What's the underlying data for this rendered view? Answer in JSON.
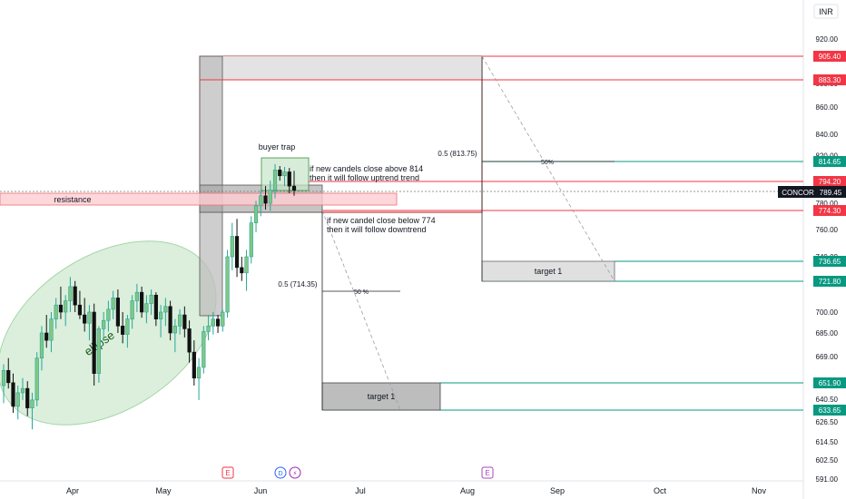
{
  "currency": "INR",
  "ticker": {
    "symbol": "CONCOR",
    "price": "789.45"
  },
  "colors": {
    "up": "#26a69a",
    "down": "#111111",
    "red_line": "#f23645",
    "green_line": "#089981",
    "ellipse_fill": "#c8e6c9",
    "box_gray": "#bdbdbd"
  },
  "axis_ticks": [
    "920.00",
    "880.00",
    "860.00",
    "840.00",
    "820.00",
    "780.00",
    "760.00",
    "740.00",
    "700.00",
    "685.00",
    "669.00",
    "640.50",
    "626.50",
    "614.50",
    "602.50",
    "591.00"
  ],
  "price_labels": [
    {
      "value": "905.40",
      "kind": "red"
    },
    {
      "value": "883.30",
      "kind": "red"
    },
    {
      "value": "814.65",
      "kind": "green"
    },
    {
      "value": "794.20",
      "kind": "red"
    },
    {
      "value": "774.30",
      "kind": "red"
    },
    {
      "value": "736.65",
      "kind": "green"
    },
    {
      "value": "721.80",
      "kind": "green"
    },
    {
      "value": "651.90",
      "kind": "green"
    },
    {
      "value": "633.65",
      "kind": "green"
    }
  ],
  "x_ticks": [
    "Apr",
    "May",
    "Jun",
    "Jul",
    "Aug",
    "Sep",
    "Oct",
    "Nov"
  ],
  "event_badges": [
    {
      "letter": "E",
      "kind": "earnings"
    },
    {
      "letter": "D",
      "kind": "dividend"
    },
    {
      "letter": "⚡",
      "kind": "split"
    },
    {
      "letter": "E",
      "kind": "earnings-upcoming"
    }
  ],
  "annotations": {
    "resistance": "resistance",
    "buyer_trap": "buyer trap",
    "uptrend_note_line1": "if new candels close above 814",
    "uptrend_note_line2": "then it will follow uptrend trend",
    "downtrend_note_line1": "if new candel close below 774",
    "downtrend_note_line2": "then it will follow downtrend",
    "fib_upper": "0.5 (813.75)",
    "fib_lower": "0.5 (714.35)",
    "pct_upper": "50%",
    "pct_lower": "50 %",
    "target_upper": "target 1",
    "target_lower": "target 1",
    "ellipse": "ellipse"
  },
  "chart_data": {
    "type": "candlestick",
    "ylim": [
      591,
      925
    ],
    "candles": [
      [
        650,
        664,
        638,
        660
      ],
      [
        660,
        668,
        648,
        652
      ],
      [
        652,
        658,
        632,
        636
      ],
      [
        636,
        650,
        628,
        645
      ],
      [
        645,
        655,
        640,
        648
      ],
      [
        648,
        653,
        630,
        635
      ],
      [
        635,
        645,
        622,
        640
      ],
      [
        640,
        672,
        636,
        668
      ],
      [
        668,
        690,
        660,
        685
      ],
      [
        685,
        698,
        675,
        680
      ],
      [
        680,
        700,
        672,
        695
      ],
      [
        695,
        710,
        688,
        705
      ],
      [
        705,
        718,
        695,
        700
      ],
      [
        700,
        712,
        690,
        708
      ],
      [
        708,
        725,
        700,
        718
      ],
      [
        718,
        722,
        700,
        705
      ],
      [
        705,
        715,
        695,
        698
      ],
      [
        698,
        710,
        686,
        692
      ],
      [
        692,
        705,
        680,
        700
      ],
      [
        700,
        706,
        650,
        658
      ],
      [
        658,
        690,
        652,
        688
      ],
      [
        688,
        700,
        680,
        694
      ],
      [
        694,
        708,
        686,
        702
      ],
      [
        702,
        715,
        695,
        710
      ],
      [
        710,
        716,
        685,
        690
      ],
      [
        690,
        700,
        678,
        684
      ],
      [
        684,
        698,
        675,
        695
      ],
      [
        695,
        712,
        688,
        708
      ],
      [
        708,
        720,
        700,
        714
      ],
      [
        714,
        718,
        696,
        700
      ],
      [
        700,
        712,
        692,
        706
      ],
      [
        706,
        716,
        698,
        712
      ],
      [
        712,
        714,
        690,
        695
      ],
      [
        695,
        705,
        682,
        700
      ],
      [
        700,
        710,
        690,
        704
      ],
      [
        704,
        708,
        680,
        685
      ],
      [
        685,
        695,
        672,
        690
      ],
      [
        690,
        702,
        684,
        698
      ],
      [
        698,
        704,
        682,
        688
      ],
      [
        688,
        694,
        665,
        672
      ],
      [
        672,
        680,
        650,
        655
      ],
      [
        655,
        668,
        640,
        662
      ],
      [
        662,
        690,
        658,
        686
      ],
      [
        686,
        698,
        680,
        690
      ],
      [
        690,
        700,
        684,
        695
      ],
      [
        695,
        698,
        685,
        690
      ],
      [
        690,
        702,
        686,
        700
      ],
      [
        700,
        745,
        696,
        740
      ],
      [
        740,
        765,
        730,
        755
      ],
      [
        755,
        768,
        725,
        732
      ],
      [
        732,
        740,
        722,
        728
      ],
      [
        728,
        745,
        715,
        740
      ],
      [
        740,
        770,
        735,
        765
      ],
      [
        765,
        782,
        758,
        778
      ],
      [
        778,
        790,
        770,
        786
      ],
      [
        786,
        792,
        775,
        780
      ],
      [
        780,
        795,
        774,
        790
      ],
      [
        790,
        812,
        784,
        806
      ],
      [
        806,
        810,
        795,
        800
      ],
      [
        800,
        809,
        792,
        804
      ],
      [
        804,
        808,
        788,
        792
      ],
      [
        792,
        805,
        786,
        790
      ]
    ],
    "horizontal_levels": [
      {
        "price": 905.4,
        "kind": "red"
      },
      {
        "price": 883.3,
        "kind": "red"
      },
      {
        "price": 814.65,
        "kind": "green"
      },
      {
        "price": 794.2,
        "kind": "red"
      },
      {
        "price": 774.3,
        "kind": "red"
      },
      {
        "price": 736.65,
        "kind": "green"
      },
      {
        "price": 721.8,
        "kind": "green"
      },
      {
        "price": 651.9,
        "kind": "green"
      },
      {
        "price": 633.65,
        "kind": "green"
      }
    ],
    "fib_levels": [
      813.75,
      714.35
    ],
    "current_price": 789.45
  }
}
